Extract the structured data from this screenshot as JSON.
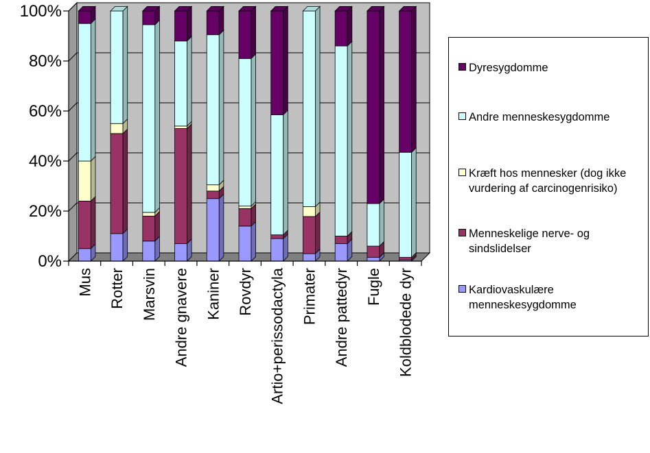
{
  "chart_data": {
    "type": "bar",
    "stacked": "percent",
    "three_d": true,
    "categories": [
      "Mus",
      "Rotter",
      "Marsvin",
      "Andre gnavere",
      "Kaniner",
      "Rovdyr",
      "Artio+perissodactyla",
      "Primater",
      "Andre pattedyr",
      "Fugle",
      "Koldblodede dyr"
    ],
    "series": [
      {
        "name": "Kardiovaskulære menneskesygdomme",
        "color": "#9999ff",
        "values": [
          5,
          11,
          8,
          7,
          25,
          14,
          9,
          3,
          7,
          1.5,
          0.5
        ]
      },
      {
        "name": "Menneskelige nerve- og sindslidelser",
        "color": "#993366",
        "values": [
          19,
          40,
          10,
          46,
          3,
          7,
          1.5,
          15,
          3,
          4.5,
          1
        ]
      },
      {
        "name": "Kræft hos mennesker (dog ikke vurdering af carcinogenrisiko)",
        "color": "#ffffcc",
        "values": [
          16,
          4,
          1.5,
          1,
          2.5,
          1,
          0,
          4,
          0,
          0,
          0
        ]
      },
      {
        "name": "Andre menneskesygdomme",
        "color": "#ccffff",
        "values": [
          55,
          45,
          75,
          34,
          60,
          59,
          48,
          79,
          76,
          17,
          42
        ]
      },
      {
        "name": "Dyresygdomme",
        "color": "#660066",
        "values": [
          5,
          0,
          5.5,
          12,
          9.5,
          19,
          41.5,
          0,
          14,
          77,
          56.5
        ]
      }
    ],
    "ylim": [
      0,
      100
    ],
    "yticks": [
      "0%",
      "20%",
      "40%",
      "60%",
      "80%",
      "100%"
    ],
    "grid": true,
    "legend_position": "right"
  }
}
